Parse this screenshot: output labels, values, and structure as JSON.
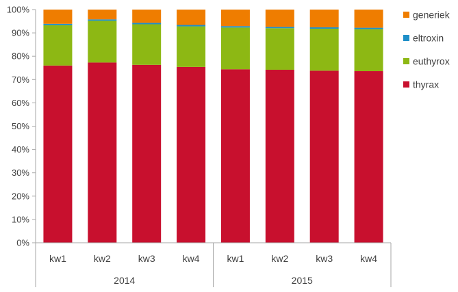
{
  "chart_data": {
    "type": "bar",
    "stacked": true,
    "percent_stacked": true,
    "categories": [
      "kw1",
      "kw2",
      "kw3",
      "kw4",
      "kw1",
      "kw2",
      "kw3",
      "kw4"
    ],
    "groups": [
      {
        "label": "2014",
        "start": 0,
        "count": 4
      },
      {
        "label": "2015",
        "start": 4,
        "count": 4
      }
    ],
    "series": [
      {
        "name": "thyrax",
        "color": "#c8102e",
        "values": [
          76,
          77.3,
          76.3,
          75.4,
          74.4,
          74.2,
          73.8,
          73.6
        ]
      },
      {
        "name": "euthyrox",
        "color": "#8db814",
        "values": [
          17.3,
          17.9,
          17.4,
          17.4,
          17.9,
          17.8,
          18.0,
          18.0
        ]
      },
      {
        "name": "eltroxin",
        "color": "#1f8fc8",
        "values": [
          0.6,
          0.6,
          0.6,
          0.6,
          0.6,
          0.6,
          0.6,
          0.6
        ]
      },
      {
        "name": "generiek",
        "color": "#ef7d00",
        "values": [
          6.1,
          4.2,
          5.7,
          6.6,
          7.1,
          7.4,
          7.6,
          7.8
        ]
      }
    ],
    "legend_order": [
      "generiek",
      "eltroxin",
      "euthyrox",
      "thyrax"
    ],
    "yticks": [
      "0%",
      "10%",
      "20%",
      "30%",
      "40%",
      "50%",
      "60%",
      "70%",
      "80%",
      "90%",
      "100%"
    ],
    "ylim": [
      0,
      100
    ],
    "grid": false,
    "legend_position": "right"
  }
}
